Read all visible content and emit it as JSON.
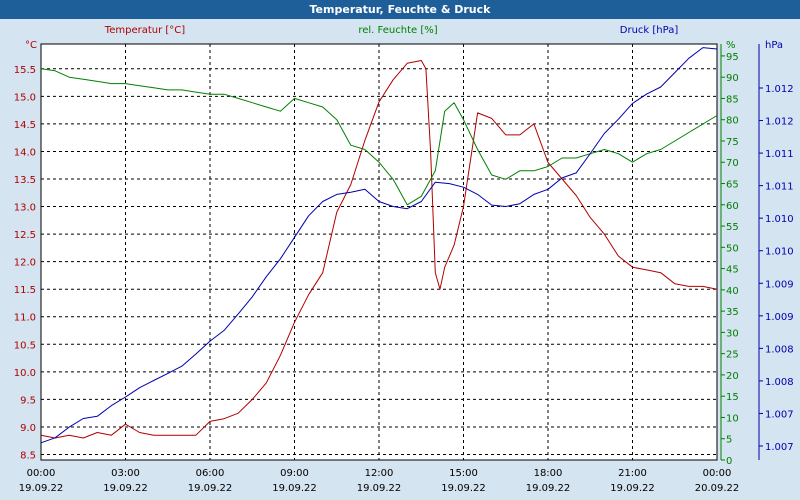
{
  "window": {
    "title": "Temperatur, Feuchte & Druck"
  },
  "chart_data": {
    "type": "line",
    "title": "Temperatur, Feuchte & Druck",
    "x_ticks": [
      {
        "time": "00:00",
        "date": "19.09.22"
      },
      {
        "time": "03:00",
        "date": "19.09.22"
      },
      {
        "time": "06:00",
        "date": "19.09.22"
      },
      {
        "time": "09:00",
        "date": "19.09.22"
      },
      {
        "time": "12:00",
        "date": "19.09.22"
      },
      {
        "time": "15:00",
        "date": "19.09.22"
      },
      {
        "time": "18:00",
        "date": "19.09.22"
      },
      {
        "time": "21:00",
        "date": "19.09.22"
      },
      {
        "time": "00:00",
        "date": "20.09.22"
      }
    ],
    "xlim": [
      "19.09.22 00:00",
      "20.09.22 00:00"
    ],
    "grid": true,
    "axes": {
      "temperature": {
        "label": "Temperatur [°C]",
        "unit": "°C",
        "color": "#b00000",
        "ylim": [
          8.4,
          15.95
        ],
        "ticks": [
          "8.5",
          "9.0",
          "9.5",
          "10.0",
          "10.5",
          "11.0",
          "11.5",
          "12.0",
          "12.5",
          "13.0",
          "13.5",
          "14.0",
          "14.5",
          "15.0",
          "15.5"
        ]
      },
      "humidity": {
        "label": "rel. Feuchte [%]",
        "unit": "%",
        "color": "#008000",
        "ylim": [
          0,
          97.8
        ],
        "ticks": [
          "0",
          "5",
          "10",
          "15",
          "20",
          "25",
          "30",
          "35",
          "40",
          "45",
          "50",
          "55",
          "60",
          "65",
          "70",
          "75",
          "80",
          "85",
          "90",
          "95"
        ]
      },
      "pressure": {
        "label": "Druck [hPa]",
        "unit": "hPa",
        "color": "#0000b0",
        "ylim": [
          1006.84,
          1012.65
        ],
        "ticks": [
          "1.007",
          "1.007",
          "1.008",
          "1.008",
          "1.009",
          "1.009",
          "1.010",
          "1.010",
          "1.011",
          "1.011",
          "1.012",
          "1.012"
        ]
      }
    },
    "series": [
      {
        "name": "Temperatur [°C]",
        "axis": "temperature",
        "color": "#b00000",
        "x": [
          "19.09.22 00:00",
          "19.09.22 00:30",
          "19.09.22 01:00",
          "19.09.22 01:30",
          "19.09.22 02:00",
          "19.09.22 02:30",
          "19.09.22 03:00",
          "19.09.22 03:30",
          "19.09.22 04:00",
          "19.09.22 04:30",
          "19.09.22 05:00",
          "19.09.22 05:30",
          "19.09.22 06:00",
          "19.09.22 06:30",
          "19.09.22 07:00",
          "19.09.22 07:30",
          "19.09.22 08:00",
          "19.09.22 08:30",
          "19.09.22 09:00",
          "19.09.22 09:30",
          "19.09.22 10:00",
          "19.09.22 10:30",
          "19.09.22 11:00",
          "19.09.22 11:30",
          "19.09.22 12:00",
          "19.09.22 12:30",
          "19.09.22 13:00",
          "19.09.22 13:30",
          "19.09.22 13:40",
          "19.09.22 13:50",
          "19.09.22 14:00",
          "19.09.22 14:10",
          "19.09.22 14:20",
          "19.09.22 14:40",
          "19.09.22 15:00",
          "19.09.22 15:30",
          "19.09.22 16:00",
          "19.09.22 16:30",
          "19.09.22 17:00",
          "19.09.22 17:30",
          "19.09.22 18:00",
          "19.09.22 18:30",
          "19.09.22 19:00",
          "19.09.22 19:30",
          "19.09.22 20:00",
          "19.09.22 20:30",
          "19.09.22 21:00",
          "19.09.22 21:30",
          "19.09.22 22:00",
          "19.09.22 22:30",
          "19.09.22 23:00",
          "19.09.22 23:30",
          "20.09.22 00:00"
        ],
        "y": [
          8.85,
          8.8,
          8.85,
          8.8,
          8.9,
          8.85,
          9.05,
          8.9,
          8.85,
          8.85,
          8.85,
          8.85,
          9.1,
          9.15,
          9.25,
          9.5,
          9.8,
          10.3,
          10.9,
          11.4,
          11.8,
          12.9,
          13.4,
          14.2,
          14.9,
          15.3,
          15.6,
          15.65,
          15.5,
          14.0,
          11.8,
          11.5,
          11.9,
          12.3,
          13.0,
          14.7,
          14.6,
          14.3,
          14.3,
          14.5,
          13.8,
          13.5,
          13.2,
          12.8,
          12.5,
          12.1,
          11.9,
          11.85,
          11.8,
          11.6,
          11.55,
          11.55,
          11.5
        ]
      },
      {
        "name": "rel. Feuchte [%]",
        "axis": "humidity",
        "color": "#008000",
        "x": [
          "19.09.22 00:00",
          "19.09.22 00:30",
          "19.09.22 01:00",
          "19.09.22 01:30",
          "19.09.22 02:00",
          "19.09.22 02:30",
          "19.09.22 03:00",
          "19.09.22 03:30",
          "19.09.22 04:00",
          "19.09.22 04:30",
          "19.09.22 05:00",
          "19.09.22 05:30",
          "19.09.22 06:00",
          "19.09.22 06:30",
          "19.09.22 07:00",
          "19.09.22 07:30",
          "19.09.22 08:00",
          "19.09.22 08:30",
          "19.09.22 09:00",
          "19.09.22 09:30",
          "19.09.22 10:00",
          "19.09.22 10:30",
          "19.09.22 11:00",
          "19.09.22 11:30",
          "19.09.22 12:00",
          "19.09.22 12:30",
          "19.09.22 13:00",
          "19.09.22 13:30",
          "19.09.22 14:00",
          "19.09.22 14:20",
          "19.09.22 14:40",
          "19.09.22 15:00",
          "19.09.22 15:30",
          "19.09.22 16:00",
          "19.09.22 16:30",
          "19.09.22 17:00",
          "19.09.22 17:30",
          "19.09.22 18:00",
          "19.09.22 18:30",
          "19.09.22 19:00",
          "19.09.22 19:30",
          "19.09.22 20:00",
          "19.09.22 20:30",
          "19.09.22 21:00",
          "19.09.22 21:30",
          "19.09.22 22:00",
          "19.09.22 22:30",
          "19.09.22 23:00",
          "19.09.22 23:30",
          "20.09.22 00:00"
        ],
        "y": [
          92,
          91.5,
          90,
          89.5,
          89,
          88.5,
          88.5,
          88,
          87.5,
          87,
          87,
          86.5,
          86,
          86,
          85,
          84,
          83,
          82,
          85,
          84,
          83,
          80,
          74,
          73,
          70,
          66,
          60,
          62,
          68,
          82,
          84,
          80,
          73,
          67,
          66,
          68,
          68,
          69,
          71,
          71,
          72,
          73,
          72,
          70,
          72,
          73,
          75,
          77,
          79,
          81
        ]
      },
      {
        "name": "Druck [hPa]",
        "axis": "pressure",
        "color": "#0000b0",
        "x": [
          "19.09.22 00:00",
          "19.09.22 00:30",
          "19.09.22 01:00",
          "19.09.22 01:30",
          "19.09.22 02:00",
          "19.09.22 02:30",
          "19.09.22 03:00",
          "19.09.22 03:30",
          "19.09.22 04:00",
          "19.09.22 04:30",
          "19.09.22 05:00",
          "19.09.22 05:30",
          "19.09.22 06:00",
          "19.09.22 06:30",
          "19.09.22 07:00",
          "19.09.22 07:30",
          "19.09.22 08:00",
          "19.09.22 08:30",
          "19.09.22 09:00",
          "19.09.22 09:30",
          "19.09.22 10:00",
          "19.09.22 10:30",
          "19.09.22 11:00",
          "19.09.22 11:30",
          "19.09.22 12:00",
          "19.09.22 12:30",
          "19.09.22 13:00",
          "19.09.22 13:30",
          "19.09.22 14:00",
          "19.09.22 14:30",
          "19.09.22 15:00",
          "19.09.22 15:30",
          "19.09.22 16:00",
          "19.09.22 16:30",
          "19.09.22 17:00",
          "19.09.22 17:30",
          "19.09.22 18:00",
          "19.09.22 18:30",
          "19.09.22 19:00",
          "19.09.22 19:30",
          "19.09.22 20:00",
          "19.09.22 20:30",
          "19.09.22 21:00",
          "19.09.22 21:30",
          "19.09.22 22:00",
          "19.09.22 22:30",
          "19.09.22 23:00",
          "19.09.22 23:30",
          "20.09.22 00:00"
        ],
        "y": [
          1007.08,
          1007.15,
          1007.3,
          1007.42,
          1007.45,
          1007.6,
          1007.72,
          1007.85,
          1007.95,
          1008.05,
          1008.15,
          1008.32,
          1008.5,
          1008.65,
          1008.88,
          1009.12,
          1009.4,
          1009.65,
          1009.95,
          1010.25,
          1010.45,
          1010.55,
          1010.58,
          1010.62,
          1010.45,
          1010.38,
          1010.35,
          1010.45,
          1010.72,
          1010.7,
          1010.65,
          1010.55,
          1010.4,
          1010.38,
          1010.42,
          1010.55,
          1010.62,
          1010.78,
          1010.85,
          1011.12,
          1011.4,
          1011.6,
          1011.82,
          1011.95,
          1012.05,
          1012.25,
          1012.45,
          1012.6,
          1012.58
        ]
      }
    ]
  }
}
